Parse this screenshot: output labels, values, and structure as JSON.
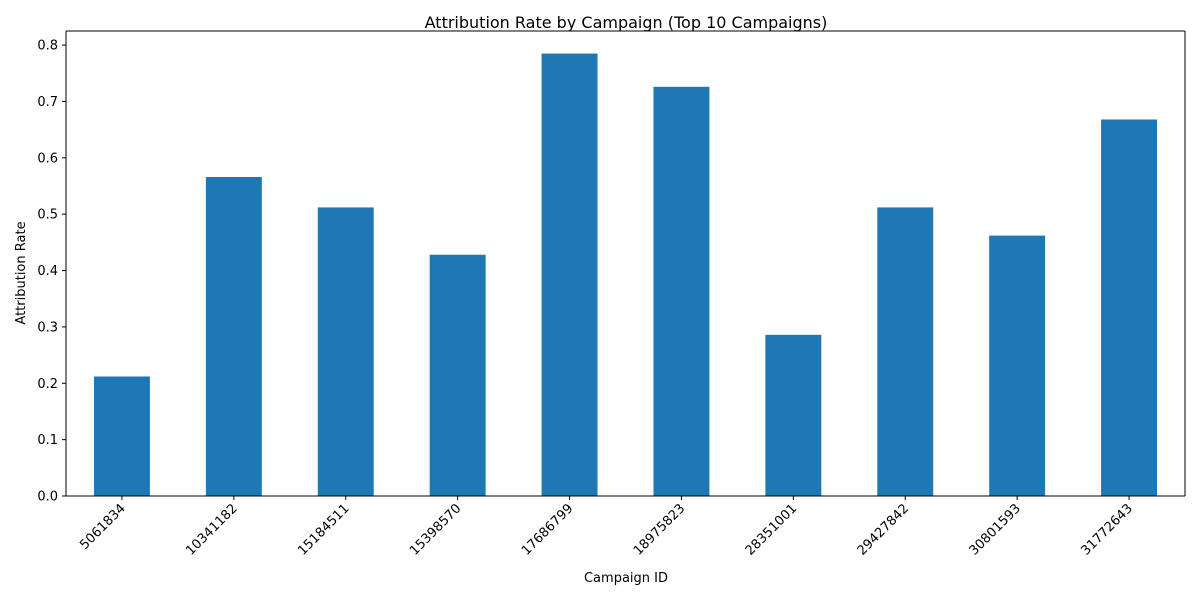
{
  "chart_data": {
    "type": "bar",
    "title": "Attribution Rate by Campaign (Top 10 Campaigns)",
    "xlabel": "Campaign ID",
    "ylabel": "Attribution Rate",
    "categories": [
      "5061834",
      "10341182",
      "15184511",
      "15398570",
      "17686799",
      "18975823",
      "28351001",
      "29427842",
      "30801593",
      "31772643"
    ],
    "values": [
      0.212,
      0.566,
      0.512,
      0.428,
      0.785,
      0.726,
      0.286,
      0.512,
      0.462,
      0.668
    ],
    "ylim": [
      0,
      0.825
    ],
    "yticks": [
      "0.0",
      "0.1",
      "0.2",
      "0.3",
      "0.4",
      "0.5",
      "0.6",
      "0.7",
      "0.8"
    ],
    "bar_color": "#1f77b4",
    "grid": false,
    "legend": "none"
  }
}
